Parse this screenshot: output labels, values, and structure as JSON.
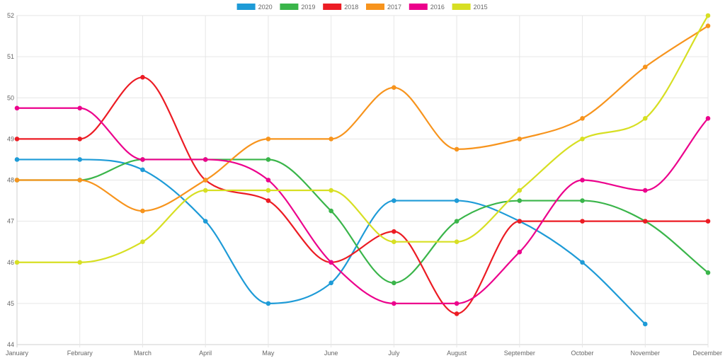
{
  "chart_data": {
    "type": "line",
    "title": "",
    "xlabel": "",
    "ylabel": "",
    "categories": [
      "January",
      "February",
      "March",
      "April",
      "May",
      "June",
      "July",
      "August",
      "September",
      "October",
      "November",
      "December"
    ],
    "ylim": [
      44,
      52
    ],
    "yticks": [
      44,
      45,
      46,
      47,
      48,
      49,
      50,
      51,
      52
    ],
    "grid": true,
    "legend_position": "top",
    "curve": "smooth",
    "series": [
      {
        "name": "2020",
        "color": "#1e9bd7",
        "values": [
          48.5,
          48.5,
          48.25,
          47,
          45,
          45.5,
          47.5,
          47.5,
          47,
          46,
          44.5,
          null
        ]
      },
      {
        "name": "2019",
        "color": "#3ab54a",
        "values": [
          48,
          48,
          48.5,
          48.5,
          48.5,
          47.25,
          45.5,
          47,
          47.5,
          47.5,
          47,
          45.75
        ]
      },
      {
        "name": "2018",
        "color": "#ec1c24",
        "values": [
          49,
          49,
          50.5,
          48,
          47.5,
          46,
          46.75,
          44.75,
          47,
          47,
          47,
          47
        ]
      },
      {
        "name": "2017",
        "color": "#f7941d",
        "values": [
          48,
          48,
          47.25,
          48,
          49,
          49,
          50.25,
          48.75,
          49,
          49.5,
          50.75,
          51.75
        ]
      },
      {
        "name": "2016",
        "color": "#ec008c",
        "values": [
          49.75,
          49.75,
          48.5,
          48.5,
          48,
          46,
          45,
          45,
          46.25,
          48,
          47.75,
          49.5
        ]
      },
      {
        "name": "2015",
        "color": "#d7df23",
        "values": [
          46,
          46,
          46.5,
          47.75,
          47.75,
          47.75,
          46.5,
          46.5,
          47.75,
          49,
          49.5,
          52
        ]
      }
    ]
  }
}
